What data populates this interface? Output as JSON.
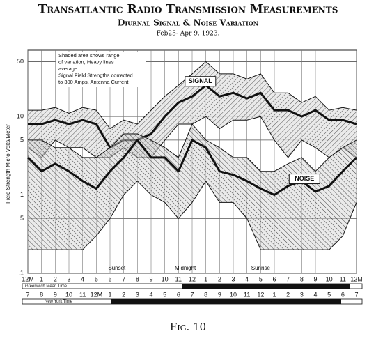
{
  "chart_data": {
    "type": "band",
    "title": "Transatlantic Radio Transmission Measurements",
    "subtitle": "Diurnal Signal & Noise Variation",
    "date_range": "Feb25- Apr 9.  1923.",
    "note": [
      "Shaded area shows range",
      "of variation, Heavy lines",
      "average",
      "Signal Field Strengths corrected",
      "to 300 Amps. Antenna Current"
    ],
    "ylabel": "Field Strength Micro Volts/Meter",
    "log_scale": true,
    "grid": true,
    "ylim": [
      0.1,
      70
    ],
    "yticks": [
      {
        "value": 0.1,
        "label": ".1"
      },
      {
        "value": 0.5,
        "label": ".5"
      },
      1,
      5,
      10,
      50
    ],
    "xlim": [
      0,
      24
    ],
    "x": [
      0,
      1,
      2,
      3,
      4,
      5,
      6,
      7,
      8,
      9,
      10,
      11,
      12,
      13,
      14,
      15,
      16,
      17,
      18,
      19,
      20,
      21,
      22,
      23,
      24
    ],
    "xticks": [
      {
        "value": 0,
        "label": "12M"
      },
      1,
      2,
      3,
      4,
      5,
      6,
      7,
      8,
      9,
      10,
      11,
      12,
      {
        "value": 13,
        "label": "1"
      },
      {
        "value": 14,
        "label": "2"
      },
      {
        "value": 15,
        "label": "3"
      },
      {
        "value": 16,
        "label": "4"
      },
      {
        "value": 17,
        "label": "5"
      },
      {
        "value": 18,
        "label": "6"
      },
      {
        "value": 19,
        "label": "7"
      },
      {
        "value": 20,
        "label": "8"
      },
      {
        "value": 21,
        "label": "9"
      },
      {
        "value": 22,
        "label": "10"
      },
      {
        "value": 23,
        "label": "11"
      },
      {
        "value": 24,
        "label": "12M"
      }
    ],
    "xaxis_label": "Greenwich Mean Time",
    "x2axis_label": "New York Time",
    "x2_labels": [
      "7",
      "8",
      "9",
      "10",
      "11",
      "12M",
      "1",
      "2",
      "3",
      "4",
      "5",
      "6",
      "7",
      "8",
      "9",
      "10",
      "11",
      "12",
      "1",
      "2",
      "3",
      "4",
      "5",
      "6",
      "7"
    ],
    "annotations": [
      {
        "text": "Sunset",
        "x": 6.5
      },
      {
        "text": "Midnight",
        "x": 11.5
      },
      {
        "text": "Sunrise",
        "x": 17
      }
    ],
    "series": [
      {
        "name": "SIGNAL",
        "color": "#111111",
        "upper": [
          12,
          12,
          13,
          11,
          13,
          12,
          7,
          9,
          8,
          12,
          18,
          25,
          35,
          50,
          35,
          35,
          30,
          35,
          20,
          20,
          15,
          18,
          12,
          13,
          12
        ],
        "values": [
          8,
          8,
          9,
          8,
          9,
          8,
          4,
          5,
          5,
          6,
          10,
          15,
          18,
          25,
          18,
          20,
          17,
          20,
          12,
          12,
          10,
          12,
          9,
          9,
          8
        ],
        "lower": [
          4,
          3,
          5,
          4,
          4,
          3,
          3,
          4,
          3,
          3,
          5,
          8,
          8,
          10,
          7,
          9,
          9,
          10,
          5,
          3,
          5,
          4,
          3,
          4,
          3
        ]
      },
      {
        "name": "NOISE",
        "color": "#111111",
        "upper": [
          5,
          5,
          4,
          4,
          3,
          3,
          4,
          6,
          6,
          5,
          4,
          3,
          8,
          5,
          4,
          3,
          3,
          2,
          2,
          2.5,
          3,
          2,
          3,
          4,
          5
        ],
        "values": [
          3,
          2,
          2.5,
          2,
          1.5,
          1.2,
          2,
          3,
          5,
          3,
          3,
          2,
          5,
          4,
          2,
          1.8,
          1.5,
          1.2,
          1,
          1.3,
          1.5,
          1.1,
          1.3,
          2,
          3
        ],
        "lower": [
          0.2,
          0.2,
          0.2,
          0.2,
          0.2,
          0.3,
          0.5,
          1,
          1.5,
          1,
          0.8,
          0.5,
          0.8,
          1.5,
          0.8,
          0.8,
          0.5,
          0.2,
          0.2,
          0.2,
          0.2,
          0.2,
          0.2,
          0.3,
          0.8
        ]
      }
    ],
    "caption": "Fig. 10"
  }
}
